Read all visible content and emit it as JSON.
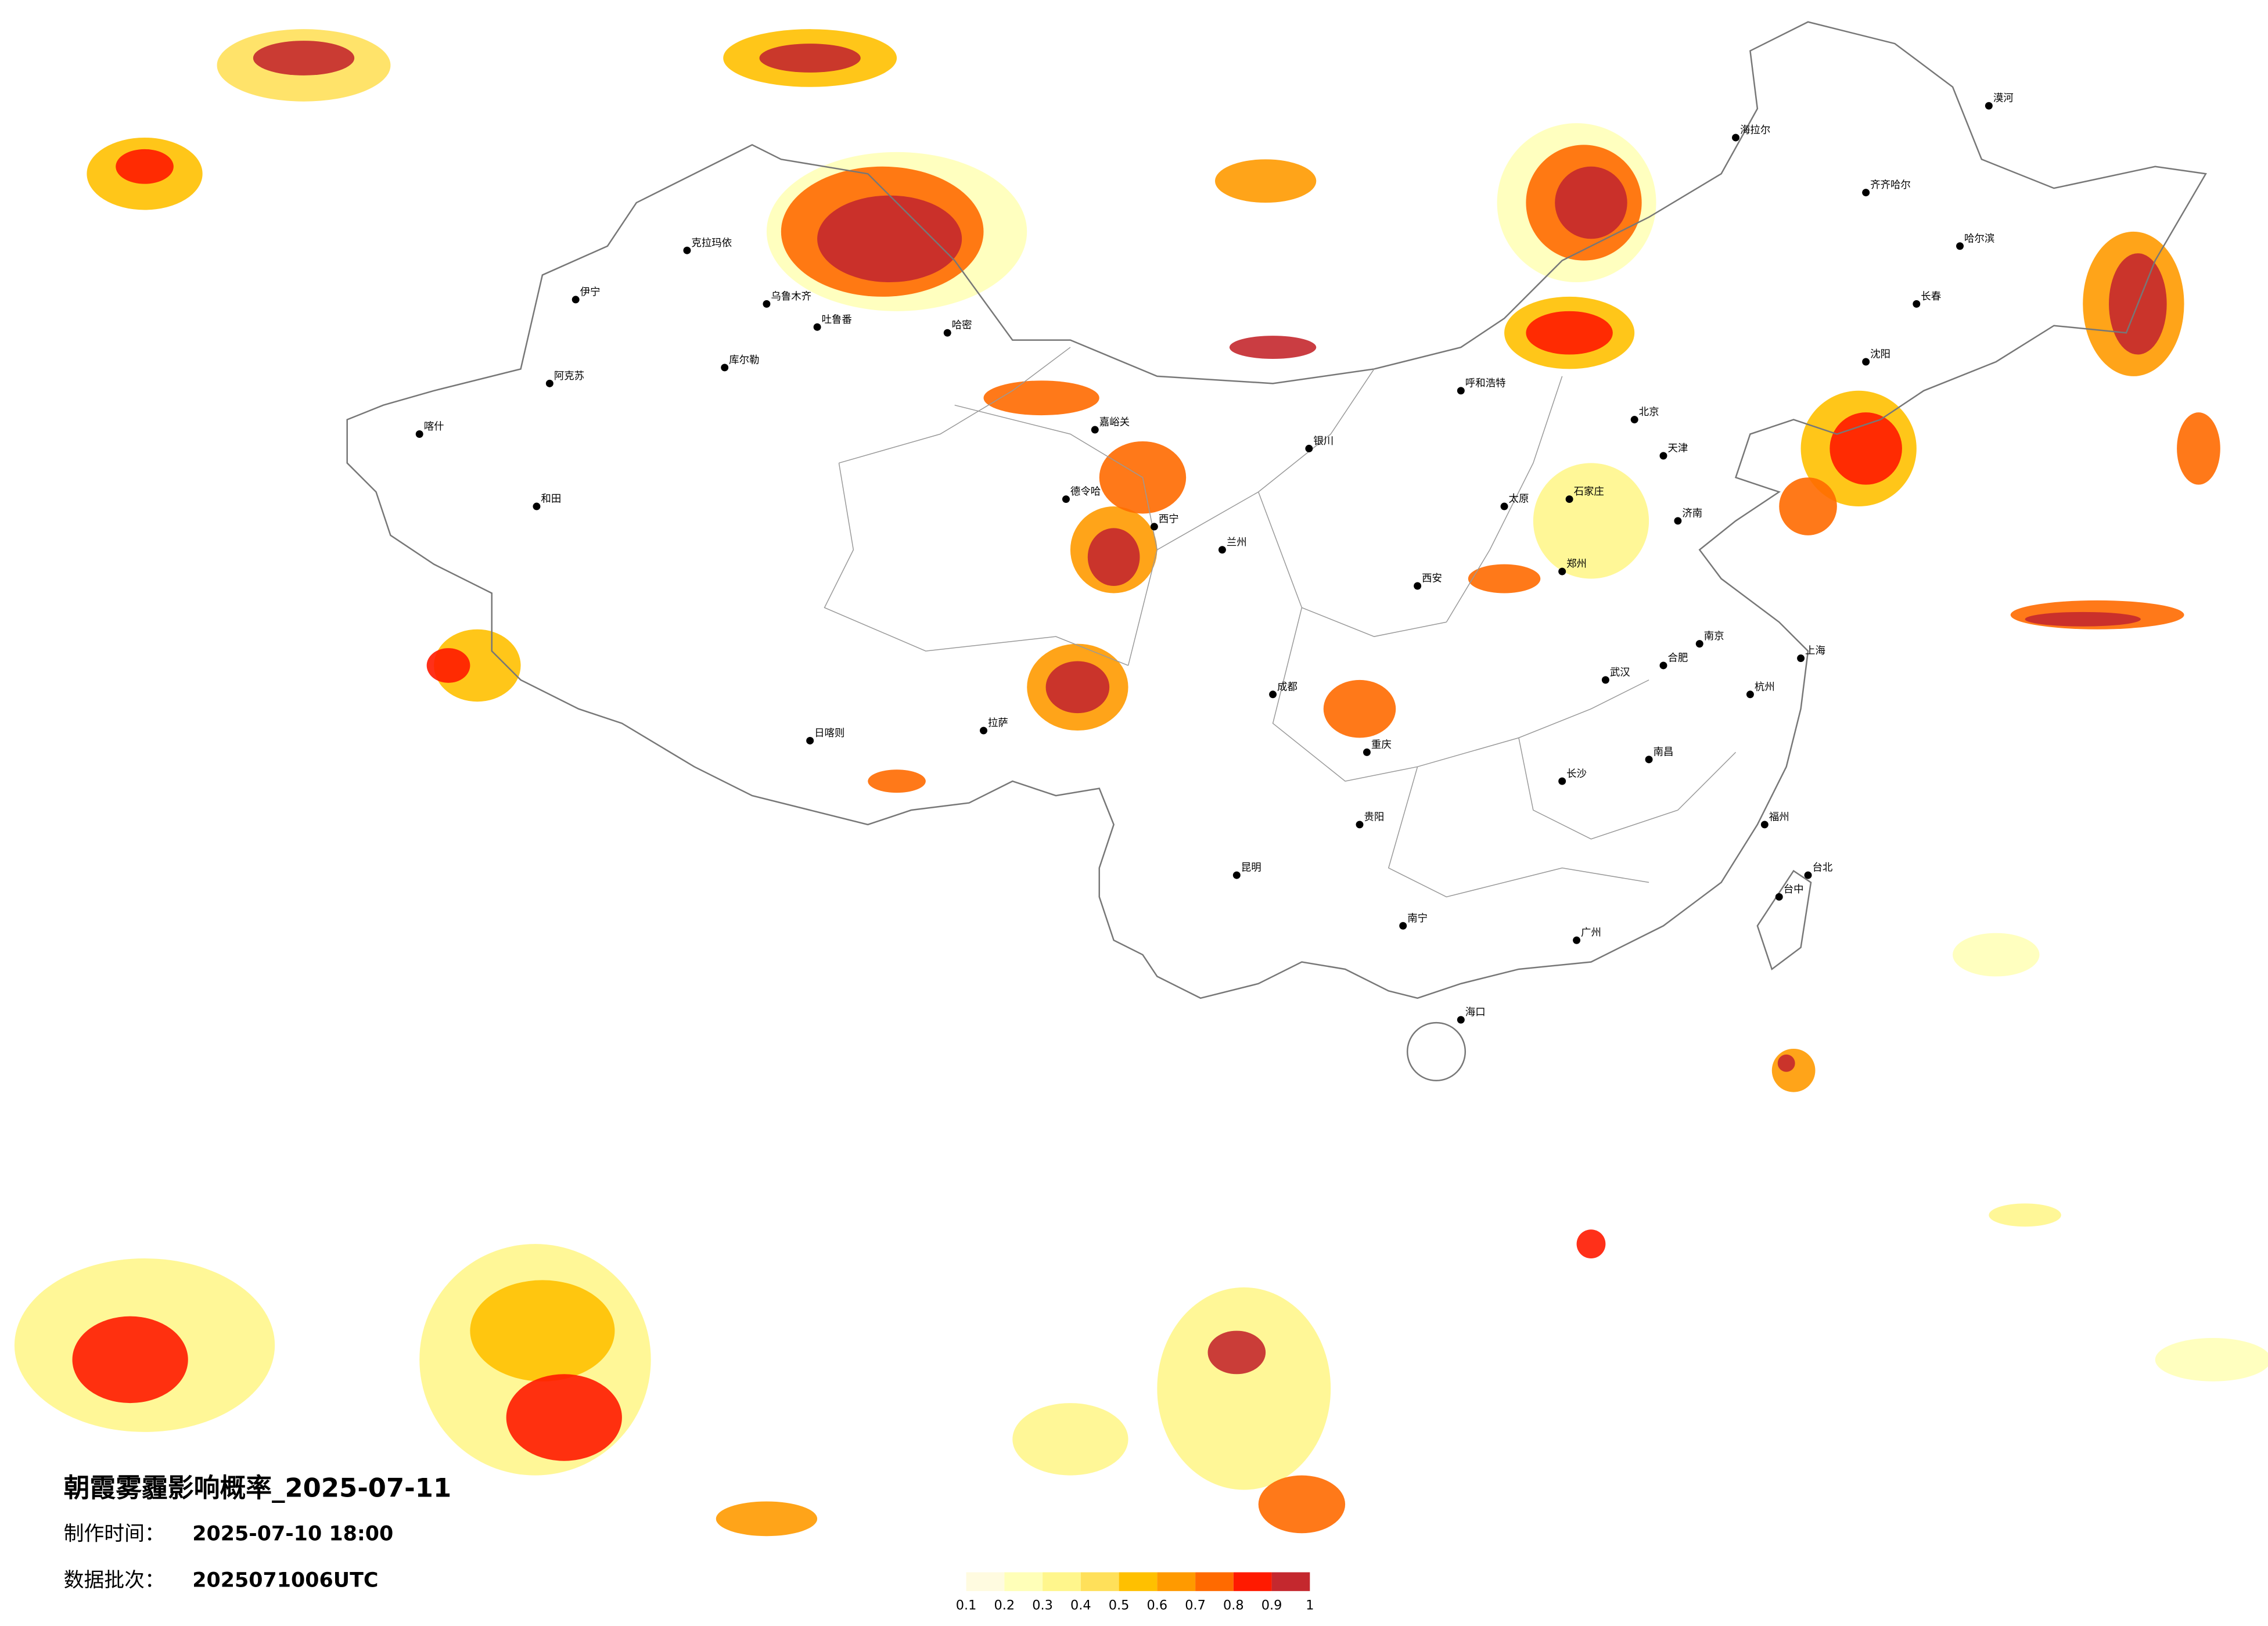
{
  "title": "朝霞雾霾影响概率_2025-07-11",
  "meta": [
    {
      "label": "制作时间：",
      "value": "2025-07-10 18:00"
    },
    {
      "label": "数据批次：",
      "value": "2025071006UTC"
    }
  ],
  "legend": {
    "colors": [
      "#fffbe0",
      "#ffffb8",
      "#fff68c",
      "#ffe05a",
      "#ffc000",
      "#ff9a00",
      "#ff6a00",
      "#ff1a00",
      "#c4282e"
    ],
    "ticks": [
      0.1,
      0.2,
      0.3,
      0.4,
      0.5,
      0.6,
      0.7,
      0.8,
      0.9,
      1
    ]
  },
  "cities": [
    "乌鲁木齐",
    "克拉玛依",
    "伊宁",
    "阿克苏",
    "喀什",
    "和田",
    "库尔勒",
    "吐鲁番",
    "哈密",
    "嘉峪关",
    "德令哈",
    "西宁",
    "兰州",
    "银川",
    "呼和浩特",
    "北京",
    "天津",
    "石家庄",
    "太原",
    "济南",
    "郑州",
    "西安",
    "成都",
    "重庆",
    "武汉",
    "长沙",
    "南昌",
    "杭州",
    "上海",
    "南京",
    "合肥",
    "福州",
    "广州",
    "南宁",
    "贵阳",
    "昆明",
    "拉萨",
    "日喀则",
    "哈尔滨",
    "长春",
    "沈阳",
    "齐齐哈尔",
    "海拉尔",
    "漠河",
    "海口",
    "台北",
    "台中"
  ]
}
